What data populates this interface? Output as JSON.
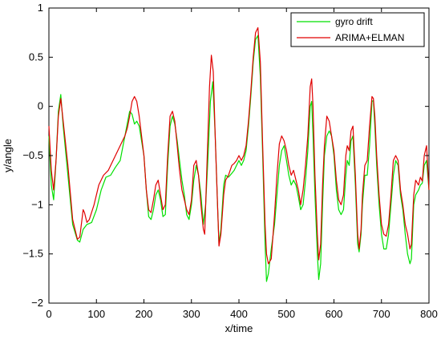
{
  "chart_data": {
    "type": "line",
    "title": "",
    "xlabel": "x/time",
    "ylabel": "y/angle",
    "xlim": [
      0,
      800
    ],
    "ylim": [
      -2,
      1
    ],
    "xticks": [
      0,
      100,
      200,
      300,
      400,
      500,
      600,
      700,
      800
    ],
    "yticks": [
      -2,
      -1.5,
      -1,
      -0.5,
      0,
      0.5,
      1
    ],
    "ytick_labels": [
      "−2",
      "−1.5",
      "−1",
      "−0.5",
      "0",
      "0.5",
      "1"
    ],
    "grid": false,
    "legend": "top-right",
    "series": [
      {
        "name": "gyro drift",
        "color": "#00e000",
        "points": [
          [
            0,
            -0.3
          ],
          [
            5,
            -0.8
          ],
          [
            10,
            -0.95
          ],
          [
            15,
            -0.55
          ],
          [
            20,
            -0.05
          ],
          [
            25,
            0.12
          ],
          [
            30,
            -0.2
          ],
          [
            40,
            -0.7
          ],
          [
            50,
            -1.2
          ],
          [
            60,
            -1.36
          ],
          [
            65,
            -1.38
          ],
          [
            72,
            -1.25
          ],
          [
            80,
            -1.2
          ],
          [
            90,
            -1.18
          ],
          [
            100,
            -1.05
          ],
          [
            110,
            -0.85
          ],
          [
            120,
            -0.72
          ],
          [
            130,
            -0.7
          ],
          [
            140,
            -0.62
          ],
          [
            150,
            -0.55
          ],
          [
            160,
            -0.3
          ],
          [
            170,
            -0.05
          ],
          [
            175,
            -0.08
          ],
          [
            180,
            -0.18
          ],
          [
            185,
            -0.15
          ],
          [
            190,
            -0.2
          ],
          [
            200,
            -0.5
          ],
          [
            205,
            -0.85
          ],
          [
            210,
            -1.12
          ],
          [
            215,
            -1.15
          ],
          [
            220,
            -1.05
          ],
          [
            225,
            -0.9
          ],
          [
            230,
            -0.85
          ],
          [
            235,
            -0.95
          ],
          [
            240,
            -1.12
          ],
          [
            245,
            -1.1
          ],
          [
            250,
            -0.6
          ],
          [
            255,
            -0.2
          ],
          [
            260,
            -0.1
          ],
          [
            265,
            -0.18
          ],
          [
            270,
            -0.35
          ],
          [
            275,
            -0.55
          ],
          [
            280,
            -0.75
          ],
          [
            285,
            -0.9
          ],
          [
            290,
            -1.1
          ],
          [
            295,
            -1.15
          ],
          [
            300,
            -1.0
          ],
          [
            305,
            -0.75
          ],
          [
            310,
            -0.6
          ],
          [
            315,
            -0.7
          ],
          [
            320,
            -0.9
          ],
          [
            325,
            -1.2
          ],
          [
            330,
            -1.0
          ],
          [
            335,
            -0.5
          ],
          [
            340,
            0.05
          ],
          [
            345,
            0.25
          ],
          [
            350,
            -0.3
          ],
          [
            355,
            -1.0
          ],
          [
            358,
            -1.4
          ],
          [
            362,
            -1.25
          ],
          [
            368,
            -0.8
          ],
          [
            372,
            -0.7
          ],
          [
            378,
            -0.72
          ],
          [
            385,
            -0.68
          ],
          [
            390,
            -0.65
          ],
          [
            395,
            -0.6
          ],
          [
            400,
            -0.55
          ],
          [
            405,
            -0.6
          ],
          [
            410,
            -0.55
          ],
          [
            415,
            -0.45
          ],
          [
            420,
            -0.2
          ],
          [
            425,
            0.1
          ],
          [
            430,
            0.45
          ],
          [
            435,
            0.68
          ],
          [
            440,
            0.72
          ],
          [
            445,
            0.3
          ],
          [
            450,
            -0.5
          ],
          [
            455,
            -1.4
          ],
          [
            458,
            -1.78
          ],
          [
            462,
            -1.7
          ],
          [
            468,
            -1.45
          ],
          [
            475,
            -1.2
          ],
          [
            480,
            -0.9
          ],
          [
            485,
            -0.6
          ],
          [
            490,
            -0.45
          ],
          [
            495,
            -0.4
          ],
          [
            500,
            -0.55
          ],
          [
            505,
            -0.7
          ],
          [
            510,
            -0.8
          ],
          [
            515,
            -0.75
          ],
          [
            520,
            -0.8
          ],
          [
            525,
            -0.92
          ],
          [
            530,
            -1.05
          ],
          [
            535,
            -1.0
          ],
          [
            540,
            -0.75
          ],
          [
            545,
            -0.45
          ],
          [
            550,
            0.0
          ],
          [
            553,
            0.05
          ],
          [
            556,
            -0.3
          ],
          [
            560,
            -0.9
          ],
          [
            565,
            -1.5
          ],
          [
            568,
            -1.76
          ],
          [
            572,
            -1.6
          ],
          [
            576,
            -1.0
          ],
          [
            580,
            -0.5
          ],
          [
            585,
            -0.3
          ],
          [
            590,
            -0.25
          ],
          [
            595,
            -0.3
          ],
          [
            600,
            -0.5
          ],
          [
            605,
            -0.85
          ],
          [
            610,
            -1.05
          ],
          [
            615,
            -1.1
          ],
          [
            620,
            -1.05
          ],
          [
            625,
            -0.7
          ],
          [
            628,
            -0.55
          ],
          [
            632,
            -0.6
          ],
          [
            636,
            -0.35
          ],
          [
            640,
            -0.3
          ],
          [
            645,
            -0.8
          ],
          [
            650,
            -1.4
          ],
          [
            653,
            -1.48
          ],
          [
            657,
            -1.3
          ],
          [
            660,
            -1.0
          ],
          [
            665,
            -0.7
          ],
          [
            670,
            -0.7
          ],
          [
            675,
            -0.4
          ],
          [
            680,
            0.05
          ],
          [
            683,
            0.06
          ],
          [
            686,
            -0.2
          ],
          [
            690,
            -0.6
          ],
          [
            695,
            -1.0
          ],
          [
            700,
            -1.3
          ],
          [
            705,
            -1.45
          ],
          [
            710,
            -1.45
          ],
          [
            715,
            -1.3
          ],
          [
            720,
            -1.0
          ],
          [
            725,
            -0.7
          ],
          [
            730,
            -0.55
          ],
          [
            735,
            -0.6
          ],
          [
            740,
            -0.9
          ],
          [
            745,
            -1.05
          ],
          [
            750,
            -1.3
          ],
          [
            755,
            -1.5
          ],
          [
            760,
            -1.6
          ],
          [
            763,
            -1.55
          ],
          [
            768,
            -1.0
          ],
          [
            772,
            -0.9
          ],
          [
            778,
            -0.85
          ],
          [
            782,
            -0.8
          ],
          [
            786,
            -0.78
          ],
          [
            790,
            -0.6
          ],
          [
            795,
            -0.55
          ],
          [
            800,
            -0.85
          ]
        ]
      },
      {
        "name": "ARIMA+ELMAN",
        "color": "#e00000",
        "points": [
          [
            0,
            -0.2
          ],
          [
            5,
            -0.65
          ],
          [
            10,
            -0.85
          ],
          [
            15,
            -0.55
          ],
          [
            20,
            -0.1
          ],
          [
            25,
            0.08
          ],
          [
            30,
            -0.15
          ],
          [
            40,
            -0.6
          ],
          [
            50,
            -1.15
          ],
          [
            60,
            -1.35
          ],
          [
            65,
            -1.33
          ],
          [
            72,
            -1.05
          ],
          [
            75,
            -1.08
          ],
          [
            80,
            -1.18
          ],
          [
            85,
            -1.15
          ],
          [
            95,
            -1.0
          ],
          [
            105,
            -0.8
          ],
          [
            115,
            -0.7
          ],
          [
            125,
            -0.65
          ],
          [
            135,
            -0.55
          ],
          [
            145,
            -0.45
          ],
          [
            155,
            -0.35
          ],
          [
            160,
            -0.3
          ],
          [
            165,
            -0.22
          ],
          [
            170,
            -0.1
          ],
          [
            175,
            0.05
          ],
          [
            180,
            0.1
          ],
          [
            185,
            0.05
          ],
          [
            190,
            -0.1
          ],
          [
            200,
            -0.5
          ],
          [
            205,
            -0.85
          ],
          [
            210,
            -1.05
          ],
          [
            215,
            -1.08
          ],
          [
            220,
            -0.95
          ],
          [
            225,
            -0.8
          ],
          [
            230,
            -0.75
          ],
          [
            235,
            -0.9
          ],
          [
            240,
            -1.05
          ],
          [
            245,
            -1.0
          ],
          [
            250,
            -0.5
          ],
          [
            255,
            -0.1
          ],
          [
            260,
            -0.05
          ],
          [
            265,
            -0.15
          ],
          [
            270,
            -0.4
          ],
          [
            275,
            -0.65
          ],
          [
            280,
            -0.85
          ],
          [
            285,
            -0.95
          ],
          [
            290,
            -1.05
          ],
          [
            295,
            -1.1
          ],
          [
            300,
            -0.95
          ],
          [
            305,
            -0.6
          ],
          [
            310,
            -0.55
          ],
          [
            315,
            -0.7
          ],
          [
            320,
            -1.0
          ],
          [
            325,
            -1.25
          ],
          [
            328,
            -1.3
          ],
          [
            332,
            -0.7
          ],
          [
            338,
            0.2
          ],
          [
            342,
            0.52
          ],
          [
            346,
            0.35
          ],
          [
            350,
            -0.3
          ],
          [
            355,
            -1.0
          ],
          [
            358,
            -1.42
          ],
          [
            362,
            -1.3
          ],
          [
            368,
            -0.9
          ],
          [
            372,
            -0.75
          ],
          [
            378,
            -0.7
          ],
          [
            385,
            -0.6
          ],
          [
            390,
            -0.58
          ],
          [
            395,
            -0.55
          ],
          [
            400,
            -0.5
          ],
          [
            405,
            -0.55
          ],
          [
            410,
            -0.5
          ],
          [
            415,
            -0.4
          ],
          [
            420,
            -0.15
          ],
          [
            425,
            0.15
          ],
          [
            430,
            0.5
          ],
          [
            435,
            0.75
          ],
          [
            440,
            0.8
          ],
          [
            445,
            0.45
          ],
          [
            450,
            -0.4
          ],
          [
            455,
            -1.2
          ],
          [
            458,
            -1.5
          ],
          [
            462,
            -1.6
          ],
          [
            468,
            -1.55
          ],
          [
            475,
            -1.1
          ],
          [
            480,
            -0.7
          ],
          [
            485,
            -0.38
          ],
          [
            490,
            -0.3
          ],
          [
            495,
            -0.35
          ],
          [
            500,
            -0.45
          ],
          [
            505,
            -0.6
          ],
          [
            510,
            -0.7
          ],
          [
            515,
            -0.65
          ],
          [
            520,
            -0.75
          ],
          [
            525,
            -0.85
          ],
          [
            530,
            -1.0
          ],
          [
            535,
            -0.85
          ],
          [
            540,
            -0.6
          ],
          [
            545,
            -0.3
          ],
          [
            550,
            0.2
          ],
          [
            553,
            0.28
          ],
          [
            556,
            0.0
          ],
          [
            560,
            -0.7
          ],
          [
            565,
            -1.3
          ],
          [
            568,
            -1.56
          ],
          [
            572,
            -1.4
          ],
          [
            576,
            -0.8
          ],
          [
            580,
            -0.4
          ],
          [
            585,
            -0.1
          ],
          [
            590,
            -0.15
          ],
          [
            595,
            -0.3
          ],
          [
            600,
            -0.45
          ],
          [
            605,
            -0.75
          ],
          [
            610,
            -0.95
          ],
          [
            615,
            -1.0
          ],
          [
            620,
            -0.9
          ],
          [
            625,
            -0.5
          ],
          [
            628,
            -0.4
          ],
          [
            632,
            -0.45
          ],
          [
            636,
            -0.25
          ],
          [
            640,
            -0.2
          ],
          [
            645,
            -0.7
          ],
          [
            650,
            -1.3
          ],
          [
            653,
            -1.45
          ],
          [
            657,
            -1.25
          ],
          [
            660,
            -0.9
          ],
          [
            665,
            -0.6
          ],
          [
            670,
            -0.55
          ],
          [
            675,
            -0.2
          ],
          [
            680,
            0.1
          ],
          [
            683,
            0.08
          ],
          [
            686,
            -0.1
          ],
          [
            690,
            -0.5
          ],
          [
            695,
            -0.9
          ],
          [
            700,
            -1.2
          ],
          [
            705,
            -1.3
          ],
          [
            710,
            -1.32
          ],
          [
            715,
            -1.2
          ],
          [
            720,
            -0.9
          ],
          [
            725,
            -0.55
          ],
          [
            730,
            -0.5
          ],
          [
            735,
            -0.55
          ],
          [
            740,
            -0.85
          ],
          [
            745,
            -1.0
          ],
          [
            750,
            -1.2
          ],
          [
            755,
            -1.3
          ],
          [
            760,
            -1.45
          ],
          [
            763,
            -1.4
          ],
          [
            768,
            -0.9
          ],
          [
            772,
            -0.75
          ],
          [
            778,
            -0.8
          ],
          [
            782,
            -0.72
          ],
          [
            786,
            -0.76
          ],
          [
            790,
            -0.5
          ],
          [
            795,
            -0.4
          ],
          [
            800,
            -0.85
          ]
        ]
      }
    ]
  }
}
